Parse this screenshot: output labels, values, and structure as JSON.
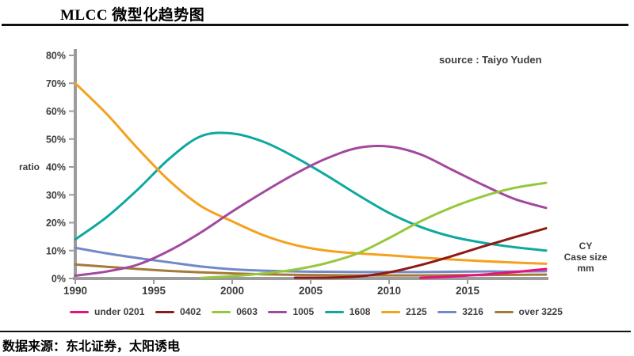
{
  "page": {
    "title": "MLCC 微型化趋势图",
    "footer_source": "数据来源：东北证券，太阳诱电"
  },
  "chart": {
    "source_note": "source : Taiyo Yuden",
    "y_axis_label": "ratio",
    "right_label_lines": [
      "CY",
      "Case size",
      "mm"
    ],
    "axis_color": "#9c9c9c",
    "text_color": "#3d3d3d"
  },
  "chart_data": {
    "type": "line",
    "title": "MLCC 微型化趋势图",
    "xlabel": "CY",
    "ylabel": "ratio",
    "xlim": [
      1990,
      2020
    ],
    "ylim": [
      0,
      80
    ],
    "x_ticks": [
      1990,
      1995,
      2000,
      2005,
      2010,
      2015
    ],
    "y_ticks": [
      "0%",
      "10%",
      "20%",
      "30%",
      "40%",
      "50%",
      "60%",
      "70%",
      "80%"
    ],
    "grid": false,
    "legend_position": "bottom",
    "draw_order": [
      "3216",
      "over 3225",
      "1608",
      "2125",
      "1005",
      "0603",
      "0402",
      "under 0201"
    ],
    "series": [
      {
        "name": "under 0201",
        "color": "#e6117e",
        "points": [
          [
            2012,
            0.2
          ],
          [
            2014,
            0.7
          ],
          [
            2016,
            1.4
          ],
          [
            2018,
            2.3
          ],
          [
            2020,
            3.4
          ]
        ]
      },
      {
        "name": "0402",
        "color": "#8e1a14",
        "points": [
          [
            2004,
            0.3
          ],
          [
            2006,
            0.3
          ],
          [
            2008,
            0.7
          ],
          [
            2010,
            2.2
          ],
          [
            2012,
            4.8
          ],
          [
            2014,
            8
          ],
          [
            2016,
            11.5
          ],
          [
            2018,
            14.8
          ],
          [
            2020,
            18
          ]
        ]
      },
      {
        "name": "0603",
        "color": "#96c83c",
        "points": [
          [
            1998,
            0.2
          ],
          [
            2000,
            0.8
          ],
          [
            2002,
            1.8
          ],
          [
            2004,
            3.2
          ],
          [
            2006,
            5.5
          ],
          [
            2008,
            9
          ],
          [
            2010,
            14.5
          ],
          [
            2012,
            20.5
          ],
          [
            2014,
            25.5
          ],
          [
            2016,
            29.5
          ],
          [
            2018,
            32.5
          ],
          [
            2020,
            34.3
          ]
        ]
      },
      {
        "name": "1005",
        "color": "#a3489f",
        "points": [
          [
            1990,
            1
          ],
          [
            1992,
            2.5
          ],
          [
            1994,
            5
          ],
          [
            1996,
            10
          ],
          [
            1998,
            16.5
          ],
          [
            2000,
            24
          ],
          [
            2002,
            31
          ],
          [
            2004,
            37.5
          ],
          [
            2006,
            43
          ],
          [
            2008,
            46.8
          ],
          [
            2010,
            47.3
          ],
          [
            2012,
            44.5
          ],
          [
            2014,
            39
          ],
          [
            2016,
            33.5
          ],
          [
            2018,
            28.5
          ],
          [
            2020,
            25.3
          ]
        ]
      },
      {
        "name": "1608",
        "color": "#0fa8a0",
        "points": [
          [
            1990,
            14
          ],
          [
            1992,
            22
          ],
          [
            1994,
            32
          ],
          [
            1996,
            43
          ],
          [
            1998,
            51
          ],
          [
            2000,
            52
          ],
          [
            2002,
            49
          ],
          [
            2004,
            43.5
          ],
          [
            2006,
            37
          ],
          [
            2008,
            30
          ],
          [
            2010,
            23.5
          ],
          [
            2012,
            18.5
          ],
          [
            2014,
            15
          ],
          [
            2016,
            12.8
          ],
          [
            2018,
            11.2
          ],
          [
            2020,
            10
          ]
        ]
      },
      {
        "name": "2125",
        "color": "#f4a11d",
        "points": [
          [
            1990,
            70
          ],
          [
            1992,
            59
          ],
          [
            1994,
            46.5
          ],
          [
            1996,
            35
          ],
          [
            1998,
            26
          ],
          [
            2000,
            20.5
          ],
          [
            2002,
            15.5
          ],
          [
            2004,
            12
          ],
          [
            2006,
            10
          ],
          [
            2008,
            9
          ],
          [
            2010,
            8.3
          ],
          [
            2012,
            7.5
          ],
          [
            2014,
            6.8
          ],
          [
            2016,
            6.2
          ],
          [
            2018,
            5.7
          ],
          [
            2020,
            5.3
          ]
        ]
      },
      {
        "name": "3216",
        "color": "#7289c7",
        "points": [
          [
            1990,
            11
          ],
          [
            1992,
            9
          ],
          [
            1994,
            7.3
          ],
          [
            1996,
            5.8
          ],
          [
            1998,
            4.3
          ],
          [
            2000,
            3.3
          ],
          [
            2002,
            2.8
          ],
          [
            2004,
            2.5
          ],
          [
            2006,
            2.4
          ],
          [
            2008,
            2.3
          ],
          [
            2010,
            2.3
          ],
          [
            2012,
            2.3
          ],
          [
            2014,
            2.4
          ],
          [
            2016,
            2.5
          ],
          [
            2018,
            2.5
          ],
          [
            2020,
            2.6
          ]
        ]
      },
      {
        "name": "over 3225",
        "color": "#a5793a",
        "points": [
          [
            1990,
            5
          ],
          [
            1992,
            4.2
          ],
          [
            1994,
            3.4
          ],
          [
            1996,
            2.7
          ],
          [
            1998,
            2.2
          ],
          [
            2000,
            1.8
          ],
          [
            2002,
            1.5
          ],
          [
            2004,
            1.3
          ],
          [
            2006,
            1.2
          ],
          [
            2008,
            1.1
          ],
          [
            2010,
            1.1
          ],
          [
            2012,
            1.1
          ],
          [
            2014,
            1.2
          ],
          [
            2016,
            1.2
          ],
          [
            2018,
            1.3
          ],
          [
            2020,
            1.4
          ]
        ]
      }
    ]
  }
}
